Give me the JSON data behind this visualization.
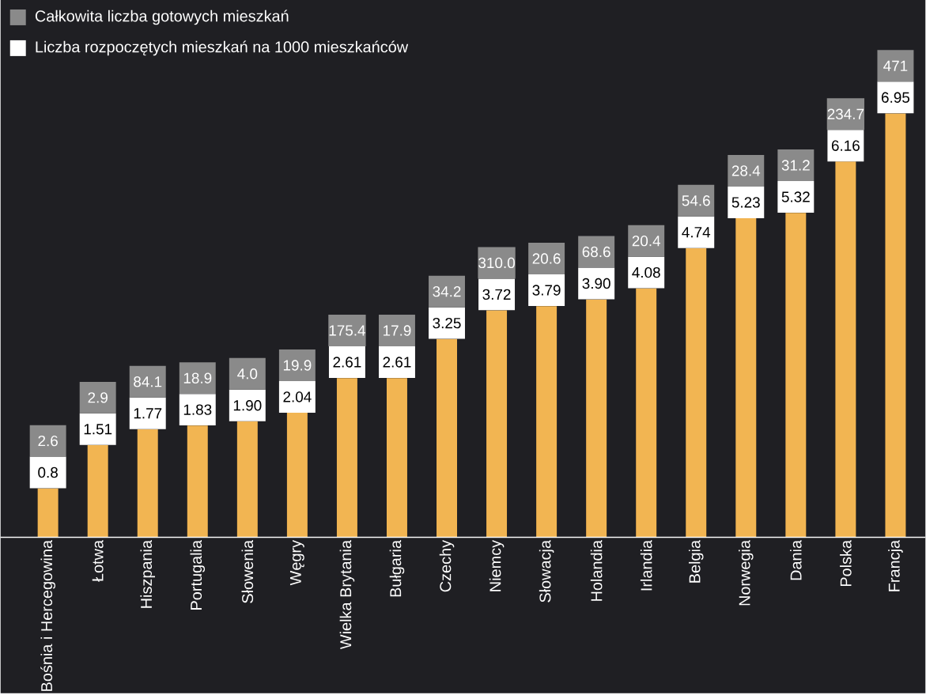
{
  "chart_data": {
    "type": "bar",
    "categories": [
      "Bośnia i Hercegowina",
      "Łotwa",
      "Hiszpania",
      "Portugalia",
      "Słowenia",
      "Węgry",
      "Wielka Brytania",
      "Bułgaria",
      "Czechy",
      "Niemcy",
      "Słowacja",
      "Holandia",
      "Irlandia",
      "Belgia",
      "Norwegia",
      "Dania",
      "Polska",
      "Francja"
    ],
    "series": [
      {
        "name": "Całkowita liczba gotowych mieszkań",
        "color": "#8a8a8a",
        "values": [
          null,
          null,
          null,
          null,
          null,
          null,
          null,
          null,
          null,
          null,
          null,
          null,
          null,
          null,
          null,
          null,
          null,
          null
        ]
      },
      {
        "name": "Liczba rozpoczętych mieszkań na 1000 mieszkańców",
        "color": "#f2b552",
        "values": [
          0.8,
          1.51,
          1.77,
          1.83,
          1.9,
          2.04,
          2.61,
          2.61,
          3.25,
          3.72,
          3.79,
          3.9,
          4.08,
          4.74,
          5.23,
          5.32,
          6.16,
          6.95
        ],
        "value_labels": [
          "0.8",
          "1.51",
          "1.77",
          "1.83",
          "1.90",
          "2.04",
          "2.61",
          "2.61",
          "3.25",
          "3.72",
          "3.79",
          "3.90",
          "4.08",
          "4.74",
          "5.23",
          "5.32",
          "6.16",
          "6.95"
        ]
      }
    ],
    "annotations": [
      {
        "text": "2.6",
        "x": "Bośnia i Hercegowina",
        "y": 0.8
      },
      {
        "text": "2.9",
        "x": "Łotwa",
        "y": 1.51
      },
      {
        "text": "84.1",
        "x": "Hiszpania",
        "y": 1.77
      },
      {
        "text": "18.9",
        "x": "Portugalia",
        "y": 1.83
      },
      {
        "text": "4.0",
        "x": "Słowenia",
        "y": 1.9
      },
      {
        "text": "19.9",
        "x": "Węgry",
        "y": 2.04
      },
      {
        "text": "175.4",
        "x": "Wielka Brytania",
        "y": 2.61
      },
      {
        "text": "17.9",
        "x": "Bułgaria",
        "y": 2.61
      },
      {
        "text": "34.2",
        "x": "Czechy",
        "y": 3.25
      },
      {
        "text": "310.0",
        "x": "Niemcy",
        "y": 3.72
      },
      {
        "text": "20.6",
        "x": "Słowacja",
        "y": 3.79
      },
      {
        "text": "68.6",
        "x": "Holandia",
        "y": 3.9
      },
      {
        "text": "20.4",
        "x": "Irlandia",
        "y": 4.08
      },
      {
        "text": "54.6",
        "x": "Belgia",
        "y": 4.74
      },
      {
        "text": "28.4",
        "x": "Norwegia",
        "y": 5.23
      },
      {
        "text": "31.2",
        "x": "Dania",
        "y": 5.32
      },
      {
        "text": "234.7",
        "x": "Polska",
        "y": 6.16
      },
      {
        "text": "471",
        "x": "Francja",
        "y": 6.95
      }
    ],
    "legend": "top left"
  }
}
